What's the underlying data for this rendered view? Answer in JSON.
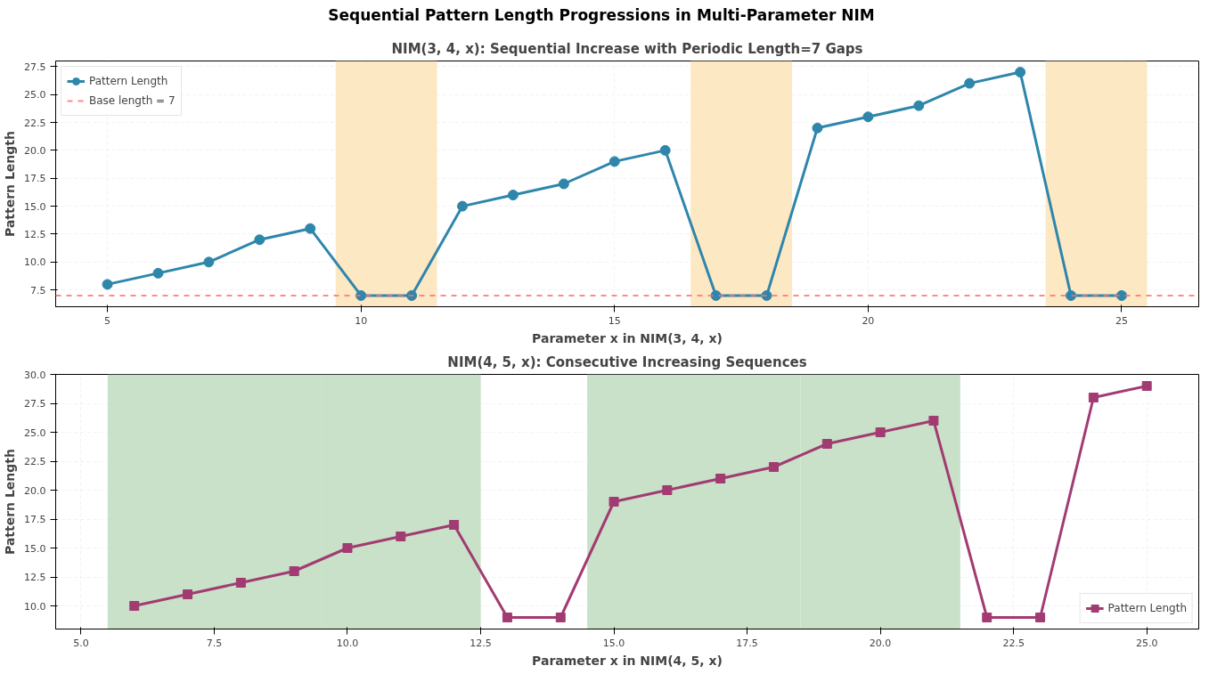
{
  "chart_data": [
    {
      "type": "line",
      "title": "NIM(3, 4, x): Sequential Increase with Periodic Length=7 Gaps",
      "annotations": [
        "Sequential Pattern Length Progressions in Multi-Parameter NIM"
      ],
      "xlabel": "Parameter x in NIM(3, 4, x)",
      "ylabel": "Pattern Length",
      "x": [
        5,
        6,
        7,
        8,
        9,
        10,
        11,
        12,
        13,
        14,
        15,
        16,
        17,
        18,
        19,
        20,
        21,
        22,
        23,
        24,
        25
      ],
      "series": [
        {
          "name": "Pattern Length",
          "color": "#2e86ab",
          "values": [
            8,
            9,
            10,
            12,
            13,
            7,
            7,
            15,
            16,
            17,
            19,
            20,
            7,
            7,
            22,
            23,
            24,
            26,
            27,
            7,
            7
          ]
        }
      ],
      "marker": "circle",
      "line_style": "solid",
      "xlim": [
        3.98,
        26.52
      ],
      "ylim": [
        6,
        28
      ],
      "xticks": [
        5,
        10,
        15,
        20,
        25
      ],
      "yticks": [
        7.5,
        {
          "value": 10,
          "label": "10.0"
        },
        12.5,
        {
          "value": 15,
          "label": "15.0"
        },
        17.5,
        {
          "value": 20,
          "label": "20.0"
        },
        22.5,
        {
          "value": 25,
          "label": "25.0"
        },
        27.5
      ],
      "ref_lines": [
        {
          "axis": "y",
          "value": 7,
          "label": "Base length = 7",
          "color": "#ff6b6b",
          "line_style": "dashed"
        }
      ],
      "bands": [
        {
          "axis": "x",
          "from": 9.5,
          "to": 11.5,
          "color": "#fde8c4"
        },
        {
          "axis": "x",
          "from": 16.5,
          "to": 18.5,
          "color": "#fde8c4"
        },
        {
          "axis": "x",
          "from": 23.5,
          "to": 25.5,
          "color": "#fde8c4"
        }
      ],
      "grid": true,
      "legend": "top left"
    },
    {
      "type": "line",
      "title": "NIM(4, 5, x): Consecutive Increasing Sequences",
      "xlabel": "Parameter x in NIM(4, 5, x)",
      "ylabel": "Pattern Length",
      "x": [
        6,
        7,
        8,
        9,
        10,
        11,
        12,
        13,
        14,
        15,
        16,
        17,
        18,
        19,
        20,
        21,
        22,
        23,
        24,
        25
      ],
      "series": [
        {
          "name": "Pattern Length",
          "color": "#a23b72",
          "values": [
            10,
            11,
            12,
            13,
            15,
            16,
            17,
            9,
            9,
            19,
            20,
            21,
            22,
            24,
            25,
            26,
            9,
            9,
            28,
            29
          ]
        }
      ],
      "marker": "square",
      "line_style": "solid",
      "xlim": [
        4.525,
        25.975
      ],
      "ylim": [
        8,
        30
      ],
      "xticks": [
        {
          "value": 5,
          "label": "5.0"
        },
        7.5,
        {
          "value": 10,
          "label": "10.0"
        },
        12.5,
        {
          "value": 15,
          "label": "15.0"
        },
        17.5,
        {
          "value": 20,
          "label": "20.0"
        },
        22.5,
        {
          "value": 25,
          "label": "25.0"
        }
      ],
      "yticks": [
        {
          "value": 10,
          "label": "10.0"
        },
        12.5,
        {
          "value": 15,
          "label": "15.0"
        },
        17.5,
        {
          "value": 20,
          "label": "20.0"
        },
        22.5,
        {
          "value": 25,
          "label": "25.0"
        },
        27.5,
        {
          "value": 30,
          "label": "30.0"
        }
      ],
      "bands": [
        {
          "axis": "x",
          "from": 5.5,
          "to": 9.5,
          "color": "#c8e1c8"
        },
        {
          "axis": "x",
          "from": 9.5,
          "to": 12.5,
          "color": "#c8e1c8"
        },
        {
          "axis": "x",
          "from": 14.5,
          "to": 18.5,
          "color": "#c8e1c8"
        },
        {
          "axis": "x",
          "from": 18.5,
          "to": 21.5,
          "color": "#c8e1c8"
        }
      ],
      "grid": true,
      "legend": "bottom right"
    }
  ]
}
